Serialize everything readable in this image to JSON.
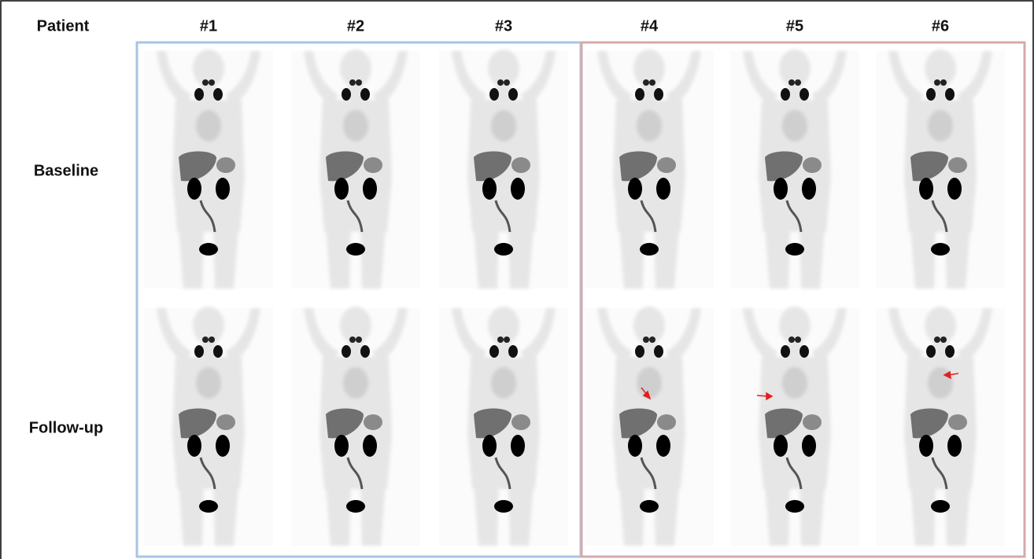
{
  "header": {
    "label": "Patient",
    "patients": [
      "#1",
      "#2",
      "#3",
      "#4",
      "#5",
      "#6"
    ]
  },
  "rows": [
    "Baseline",
    "Follow-up"
  ]
}
